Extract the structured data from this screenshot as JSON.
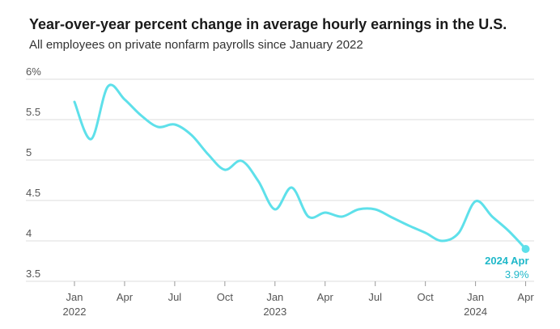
{
  "header": {
    "title": "Year-over-year percent change in average hourly earnings in the U.S.",
    "subtitle": "All employees on private nonfarm payrolls since January 2022"
  },
  "colors": {
    "line": "#5ee0ea",
    "accent": "#1fb8c9",
    "grid": "#dcdcdc"
  },
  "chart_data": {
    "type": "line",
    "title": "Year-over-year percent change in average hourly earnings in the U.S.",
    "subtitle": "All employees on private nonfarm payrolls since January 2022",
    "xlabel": "",
    "ylabel": "",
    "ylim": [
      3.5,
      6
    ],
    "yticks": [
      3.5,
      4,
      4.5,
      5,
      5.5,
      6
    ],
    "ytick_labels": [
      "3.5",
      "4",
      "4.5",
      "5",
      "5.5",
      "6%"
    ],
    "grid": true,
    "xticks": [
      {
        "date": "2022-01",
        "label": "Jan",
        "sub": "2022"
      },
      {
        "date": "2022-04",
        "label": "Apr",
        "sub": ""
      },
      {
        "date": "2022-07",
        "label": "Jul",
        "sub": ""
      },
      {
        "date": "2022-10",
        "label": "Oct",
        "sub": ""
      },
      {
        "date": "2023-01",
        "label": "Jan",
        "sub": "2023"
      },
      {
        "date": "2023-04",
        "label": "Apr",
        "sub": ""
      },
      {
        "date": "2023-07",
        "label": "Jul",
        "sub": ""
      },
      {
        "date": "2023-10",
        "label": "Oct",
        "sub": ""
      },
      {
        "date": "2024-01",
        "label": "Jan",
        "sub": "2024"
      },
      {
        "date": "2024-04",
        "label": "Apr",
        "sub": ""
      }
    ],
    "series": [
      {
        "points": [
          {
            "x": "2022-01",
            "y": 5.72
          },
          {
            "x": "2022-02",
            "y": 5.26
          },
          {
            "x": "2022-03",
            "y": 5.91
          },
          {
            "x": "2022-04",
            "y": 5.75
          },
          {
            "x": "2022-05",
            "y": 5.55
          },
          {
            "x": "2022-06",
            "y": 5.41
          },
          {
            "x": "2022-07",
            "y": 5.44
          },
          {
            "x": "2022-08",
            "y": 5.31
          },
          {
            "x": "2022-09",
            "y": 5.07
          },
          {
            "x": "2022-10",
            "y": 4.88
          },
          {
            "x": "2022-11",
            "y": 4.99
          },
          {
            "x": "2022-12",
            "y": 4.74
          },
          {
            "x": "2023-01",
            "y": 4.39
          },
          {
            "x": "2023-02",
            "y": 4.66
          },
          {
            "x": "2023-03",
            "y": 4.3
          },
          {
            "x": "2023-04",
            "y": 4.35
          },
          {
            "x": "2023-05",
            "y": 4.3
          },
          {
            "x": "2023-06",
            "y": 4.39
          },
          {
            "x": "2023-07",
            "y": 4.39
          },
          {
            "x": "2023-08",
            "y": 4.29
          },
          {
            "x": "2023-09",
            "y": 4.19
          },
          {
            "x": "2023-10",
            "y": 4.1
          },
          {
            "x": "2023-11",
            "y": 4.0
          },
          {
            "x": "2023-12",
            "y": 4.1
          },
          {
            "x": "2024-01",
            "y": 4.49
          },
          {
            "x": "2024-02",
            "y": 4.3
          },
          {
            "x": "2024-03",
            "y": 4.12
          },
          {
            "x": "2024-04",
            "y": 3.9
          }
        ]
      }
    ],
    "callout": {
      "x": "2024-04",
      "y": 3.9,
      "label": "2024 Apr",
      "value_label": "3.9%"
    }
  }
}
